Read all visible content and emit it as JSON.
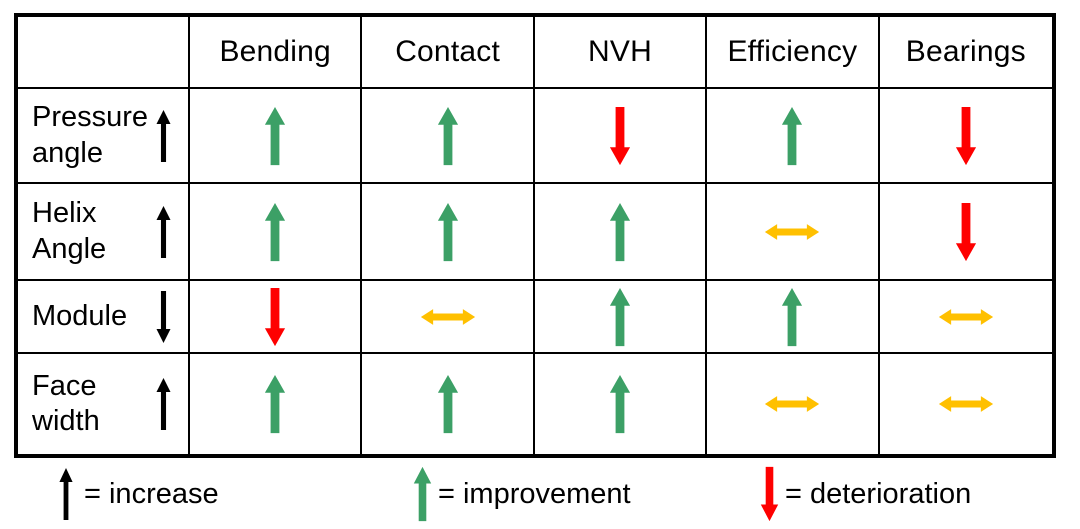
{
  "colors": {
    "improvement_green": "#3CA066",
    "deterioration_red": "#FE0000",
    "neutral_yellow": "#FFC000",
    "black_arrow": "#000000",
    "border": "#000000",
    "background": "#FFFFFF",
    "text": "#000000"
  },
  "table": {
    "corner": "",
    "column_headers": [
      "Bending",
      "Contact",
      "NVH",
      "Efficiency",
      "Bearings"
    ],
    "rows": [
      {
        "label": "Pressure angle",
        "direction": "increase",
        "effects": [
          "improvement",
          "improvement",
          "deterioration",
          "improvement",
          "deterioration"
        ]
      },
      {
        "label": "Helix Angle",
        "direction": "increase",
        "effects": [
          "improvement",
          "improvement",
          "improvement",
          "neutral",
          "deterioration"
        ]
      },
      {
        "label": "Module",
        "direction": "decrease",
        "effects": [
          "deterioration",
          "neutral",
          "improvement",
          "improvement",
          "neutral"
        ]
      },
      {
        "label": "Face width",
        "direction": "increase",
        "effects": [
          "improvement",
          "improvement",
          "improvement",
          "neutral",
          "neutral"
        ]
      }
    ]
  },
  "legend": [
    {
      "symbol": "increase",
      "label": "= increase"
    },
    {
      "symbol": "improvement",
      "label": "= improvement"
    },
    {
      "symbol": "deterioration",
      "label": "= deterioration"
    }
  ]
}
